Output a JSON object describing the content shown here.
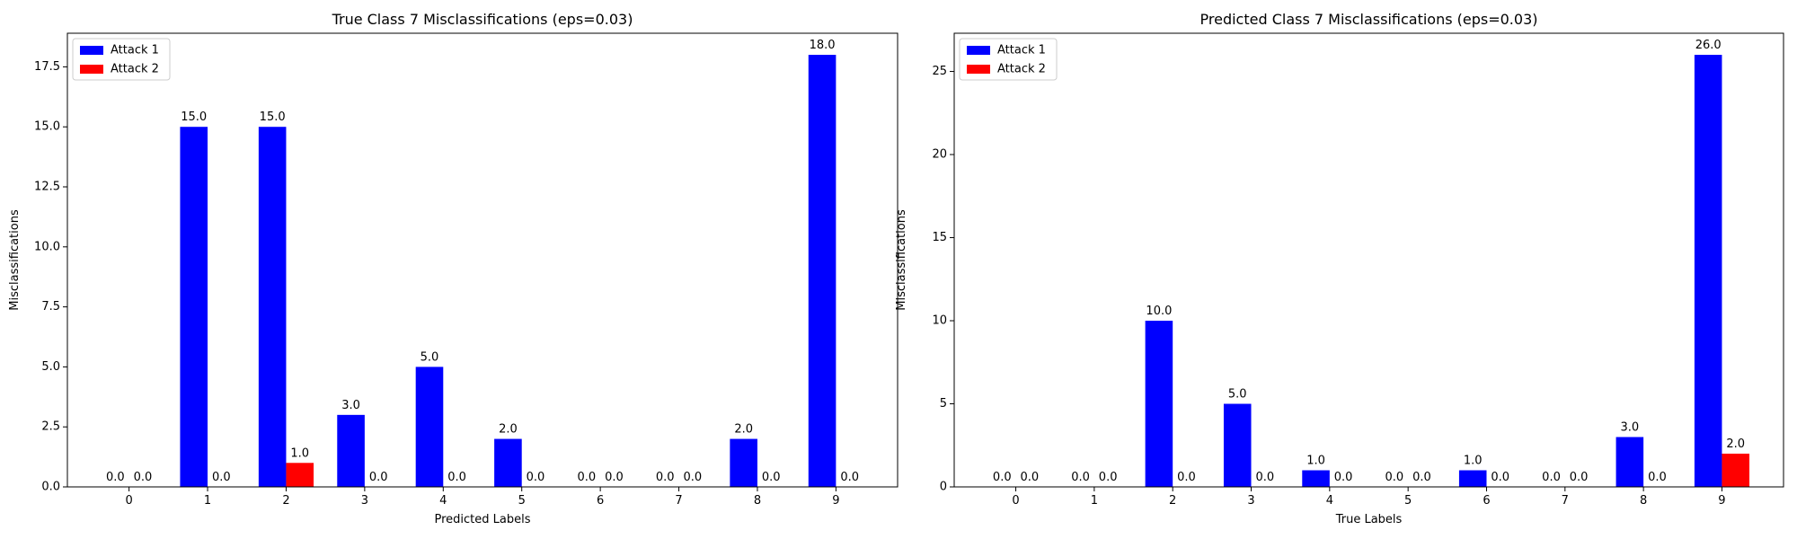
{
  "colors": {
    "attack1": "#0000ff",
    "attack2": "#ff0000"
  },
  "chart_data": [
    {
      "type": "bar",
      "title": "True Class 7 Misclassifications (eps=0.03)",
      "xlabel": "Predicted Labels",
      "ylabel": "Misclassifications",
      "categories": [
        "0",
        "1",
        "2",
        "3",
        "4",
        "5",
        "6",
        "7",
        "8",
        "9"
      ],
      "ylim": [
        0,
        18.9
      ],
      "yticks": [
        0.0,
        2.5,
        5.0,
        7.5,
        10.0,
        12.5,
        15.0,
        17.5
      ],
      "ytick_labels": [
        "0.0",
        "2.5",
        "5.0",
        "7.5",
        "10.0",
        "12.5",
        "15.0",
        "17.5"
      ],
      "legend_position": "top-left",
      "series": [
        {
          "name": "Attack 1",
          "color": "#0000ff",
          "values": [
            0,
            15,
            15,
            3,
            5,
            2,
            0,
            0,
            2,
            18
          ],
          "labels": [
            "0.0",
            "15.0",
            "15.0",
            "3.0",
            "5.0",
            "2.0",
            "0.0",
            "0.0",
            "2.0",
            "18.0"
          ]
        },
        {
          "name": "Attack 2",
          "color": "#ff0000",
          "values": [
            0,
            0,
            1,
            0,
            0,
            0,
            0,
            0,
            0,
            0
          ],
          "labels": [
            "0.0",
            "0.0",
            "1.0",
            "0.0",
            "0.0",
            "0.0",
            "0.0",
            "0.0",
            "0.0",
            "0.0"
          ]
        }
      ]
    },
    {
      "type": "bar",
      "title": "Predicted Class 7 Misclassifications (eps=0.03)",
      "xlabel": "True Labels",
      "ylabel": "Misclassifications",
      "categories": [
        "0",
        "1",
        "2",
        "3",
        "4",
        "5",
        "6",
        "7",
        "8",
        "9"
      ],
      "ylim": [
        0,
        27.3
      ],
      "yticks": [
        0,
        5,
        10,
        15,
        20,
        25
      ],
      "ytick_labels": [
        "0",
        "5",
        "10",
        "15",
        "20",
        "25"
      ],
      "legend_position": "top-left",
      "series": [
        {
          "name": "Attack 1",
          "color": "#0000ff",
          "values": [
            0,
            0,
            10,
            5,
            1,
            0,
            1,
            0,
            3,
            26
          ],
          "labels": [
            "0.0",
            "0.0",
            "10.0",
            "5.0",
            "1.0",
            "0.0",
            "1.0",
            "0.0",
            "3.0",
            "26.0"
          ]
        },
        {
          "name": "Attack 2",
          "color": "#ff0000",
          "values": [
            0,
            0,
            0,
            0,
            0,
            0,
            0,
            0,
            0,
            2
          ],
          "labels": [
            "0.0",
            "0.0",
            "0.0",
            "0.0",
            "0.0",
            "0.0",
            "0.0",
            "0.0",
            "0.0",
            "2.0"
          ]
        }
      ]
    }
  ]
}
